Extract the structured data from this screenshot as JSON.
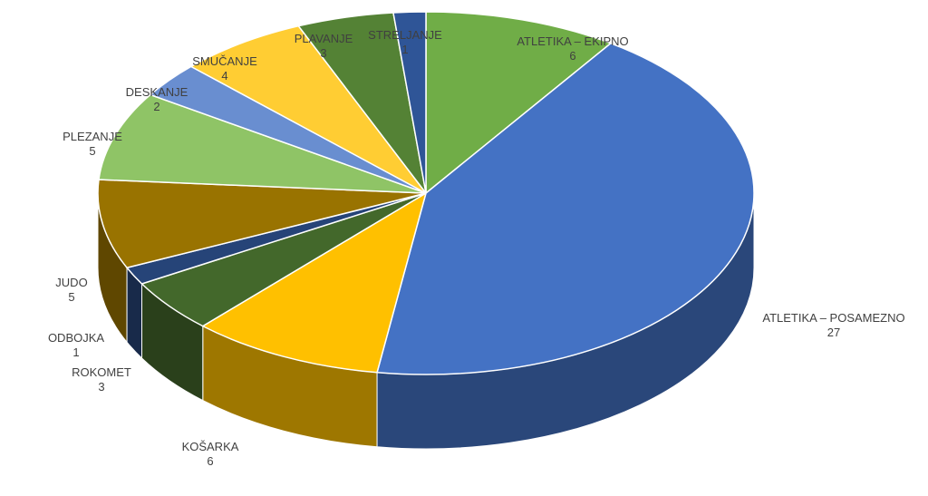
{
  "chart_data": {
    "type": "pie",
    "style": "3d",
    "title": "",
    "legend": "none",
    "slices": [
      {
        "label": "ATLETIKA – EKIPNO",
        "value": 6,
        "color": "#70AD47"
      },
      {
        "label": "ATLETIKA – POSAMEZNO",
        "value": 27,
        "color": "#4472C4"
      },
      {
        "label": "KOŠARKA",
        "value": 6,
        "color": "#FFC000"
      },
      {
        "label": "ROKOMET",
        "value": 3,
        "color": "#43682B"
      },
      {
        "label": "ODBOJKA",
        "value": 1,
        "color": "#264478"
      },
      {
        "label": "JUDO",
        "value": 5,
        "color": "#997300"
      },
      {
        "label": "PLEZANJE",
        "value": 5,
        "color": "#8FC466"
      },
      {
        "label": "DESKANJE",
        "value": 2,
        "color": "#698ED0"
      },
      {
        "label": "SMUČANJE",
        "value": 4,
        "color": "#FFCD33"
      },
      {
        "label": "PLAVANJE",
        "value": 3,
        "color": "#548235"
      },
      {
        "label": "STRELJANJE",
        "value": 1,
        "color": "#2F5597"
      }
    ]
  }
}
